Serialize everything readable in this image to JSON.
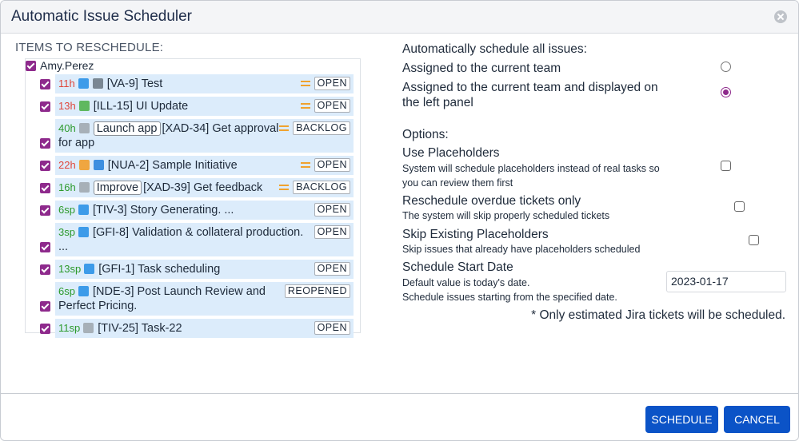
{
  "dialog": {
    "title": "Automatic Issue Scheduler"
  },
  "items_panel": {
    "heading": "ITEMS TO RESCHEDULE:",
    "assignee": "Amy.Perez",
    "items": [
      {
        "estimate": "11h",
        "estimate_color": "#e0463a",
        "icons": [
          "#3d9be9",
          "#7a8793"
        ],
        "summary": "[VA-9] Test",
        "priority_color": "#f0a22e",
        "status": "OPEN"
      },
      {
        "estimate": "13h",
        "estimate_color": "#e0463a",
        "icons": [
          "#5fb85f"
        ],
        "summary": "[ILL-15] UI Update",
        "priority_color": "#f0a22e",
        "status": "OPEN"
      },
      {
        "estimate": "40h",
        "estimate_color": "#2c9a2c",
        "icons": [
          "#a7b0b8"
        ],
        "tag": "Launch app",
        "summary": "[XAD-34] Get approval for app",
        "priority_color": "#f0a22e",
        "status": "BACKLOG"
      },
      {
        "estimate": "22h",
        "estimate_color": "#e0463a",
        "icons": [
          "#f0a640",
          "#3d8fe0"
        ],
        "summary": "[NUA-2] Sample Initiative",
        "priority_color": "#f0a22e",
        "status": "OPEN"
      },
      {
        "estimate": "16h",
        "estimate_color": "#2c9a2c",
        "icons": [
          "#a7b0b8"
        ],
        "tag": "Improve",
        "summary": "[XAD-39] Get feedback",
        "priority_color": "#f0a22e",
        "status": "BACKLOG"
      },
      {
        "estimate": "6sp",
        "estimate_color": "#2c9a2c",
        "icons": [
          "#3d9be9"
        ],
        "summary": "[TIV-3] Story Generating. ...",
        "status": "OPEN"
      },
      {
        "estimate": "3sp",
        "estimate_color": "#2c9a2c",
        "icons": [
          "#3d9be9"
        ],
        "summary": "[GFI-8] Validation & collateral production. ...",
        "status": "OPEN"
      },
      {
        "estimate": "13sp",
        "estimate_color": "#2c9a2c",
        "icons": [
          "#3d9be9"
        ],
        "summary": "[GFI-1] Task scheduling",
        "status": "OPEN"
      },
      {
        "estimate": "6sp",
        "estimate_color": "#2c9a2c",
        "icons": [
          "#3d9be9"
        ],
        "summary": "[NDE-3] Post Launch Review and Perfect Pricing.",
        "status": "REOPENED"
      },
      {
        "estimate": "11sp",
        "estimate_color": "#2c9a2c",
        "icons": [
          "#a7b0b8"
        ],
        "summary": "[TIV-25] Task-22",
        "status": "OPEN"
      }
    ]
  },
  "settings": {
    "scope_heading": "Automatically schedule all issues:",
    "scope_choices": [
      {
        "label": "Assigned to the current team",
        "selected": false
      },
      {
        "label": "Assigned to the current team and displayed on the left panel",
        "selected": true
      }
    ],
    "options_heading": "Options:",
    "options": [
      {
        "label": "Use Placeholders",
        "description": "System will schedule placeholders instead of real tasks so you can review them first",
        "checked": false
      },
      {
        "label": "Reschedule overdue tickets only",
        "description": "The system will skip properly scheduled tickets",
        "checked": false
      },
      {
        "label": "Skip Existing Placeholders",
        "description": "Skip issues that already have placeholders scheduled",
        "checked": false
      }
    ],
    "start_date": {
      "label": "Schedule Start Date",
      "hint1": "Default value is today's date.",
      "hint2": "Schedule issues starting from the specified date.",
      "value": "2023-01-17"
    },
    "note": "* Only estimated Jira tickets will be scheduled."
  },
  "buttons": {
    "schedule": "SCHEDULE",
    "cancel": "CANCEL"
  }
}
